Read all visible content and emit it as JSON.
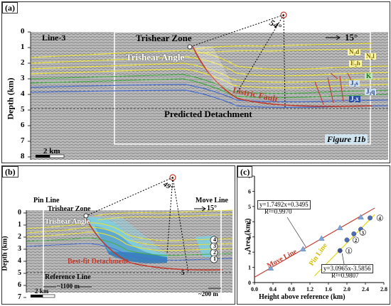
{
  "panel_a": {
    "label": "(a)",
    "line_name": "Line-3",
    "zone_label": "Trishear Zone",
    "angle_label": "Trishear Angle",
    "apex_angle": "54°",
    "dip_angle": "15°",
    "fault_label": "Listric Fault",
    "detachment_label": "Predicted Detachment",
    "scale_label": "2 km",
    "inset_ref": "Figure 11b",
    "depth_axis_title": "Depth (km)",
    "depth_ticks": [
      "0",
      "1",
      "2",
      "3",
      "4",
      "5",
      "6",
      "7",
      "8"
    ],
    "formations_left": [
      "N₂d",
      "E₃h",
      "K",
      "J₃s",
      "J₂x"
    ],
    "formations_right": [
      "N₂l",
      "J₃q"
    ]
  },
  "panel_b": {
    "label": "(b)",
    "pin_line": "Pin Line",
    "move_line": "Move Line",
    "zone_label": "Trishear Zone",
    "angle_label": "Trishear Angle",
    "apex_angle": "49°",
    "dip_angle": "15°",
    "detachment_label": "Best-fit Detachment",
    "reference_label": "Reference Line",
    "dist_left": "~1100 m",
    "dist_right": "~200 m",
    "scale_label": "2 km",
    "depth_axis_title": "Depth (km)",
    "depth_ticks": [
      "0",
      "1",
      "2",
      "3",
      "4",
      "5",
      "6",
      "7"
    ],
    "markers": [
      "4",
      "3",
      "2",
      "1"
    ],
    "small_num": "5"
  },
  "panel_c": {
    "label": "(c)",
    "chart_data": {
      "type": "scatter",
      "xlabel": "Height above reference (km)",
      "ylabel": "Area (km²)",
      "xlim": [
        0.0,
        2.8
      ],
      "ylim": [
        0,
        7
      ],
      "x_ticks": [
        "0.0",
        "0.4",
        "0.8",
        "1.2",
        "1.6",
        "2.0",
        "2.4",
        "2.8"
      ],
      "y_ticks": [
        "0",
        "1",
        "2",
        "3",
        "4",
        "5",
        "6",
        "7"
      ],
      "series": [
        {
          "name": "Move Line",
          "marker": "triangle",
          "color": "#7ea7d8",
          "x": [
            0.35,
            1.05,
            1.45,
            1.85,
            2.3
          ],
          "y": [
            0.95,
            2.2,
            2.9,
            3.6,
            4.3
          ],
          "fit_eq": "y=1.7492x+0.3495",
          "fit_r2": "R²=0.9970",
          "slope": 1.7492,
          "intercept": 0.3495
        },
        {
          "name": "Pin Line",
          "marker": "circle",
          "color": "#3b5fb0",
          "x": [
            1.85,
            2.0,
            2.15,
            2.3,
            2.5
          ],
          "y": [
            2.1,
            2.8,
            3.2,
            3.5,
            4.25
          ],
          "fit_eq": "y=3.0965x-3.5856",
          "fit_r2": "R²=0.9807",
          "slope": 3.0965,
          "intercept": -3.5856
        }
      ],
      "point_labels": [
        "1",
        "2",
        "3",
        "4"
      ]
    }
  },
  "colors": {
    "seismic_bg": "#bdbdbd",
    "fault_red": "#c0392b",
    "yellow_horizon": "#e8df3a",
    "green_horizon": "#4cae4c",
    "blue_horizon": "#4a6fd1"
  }
}
